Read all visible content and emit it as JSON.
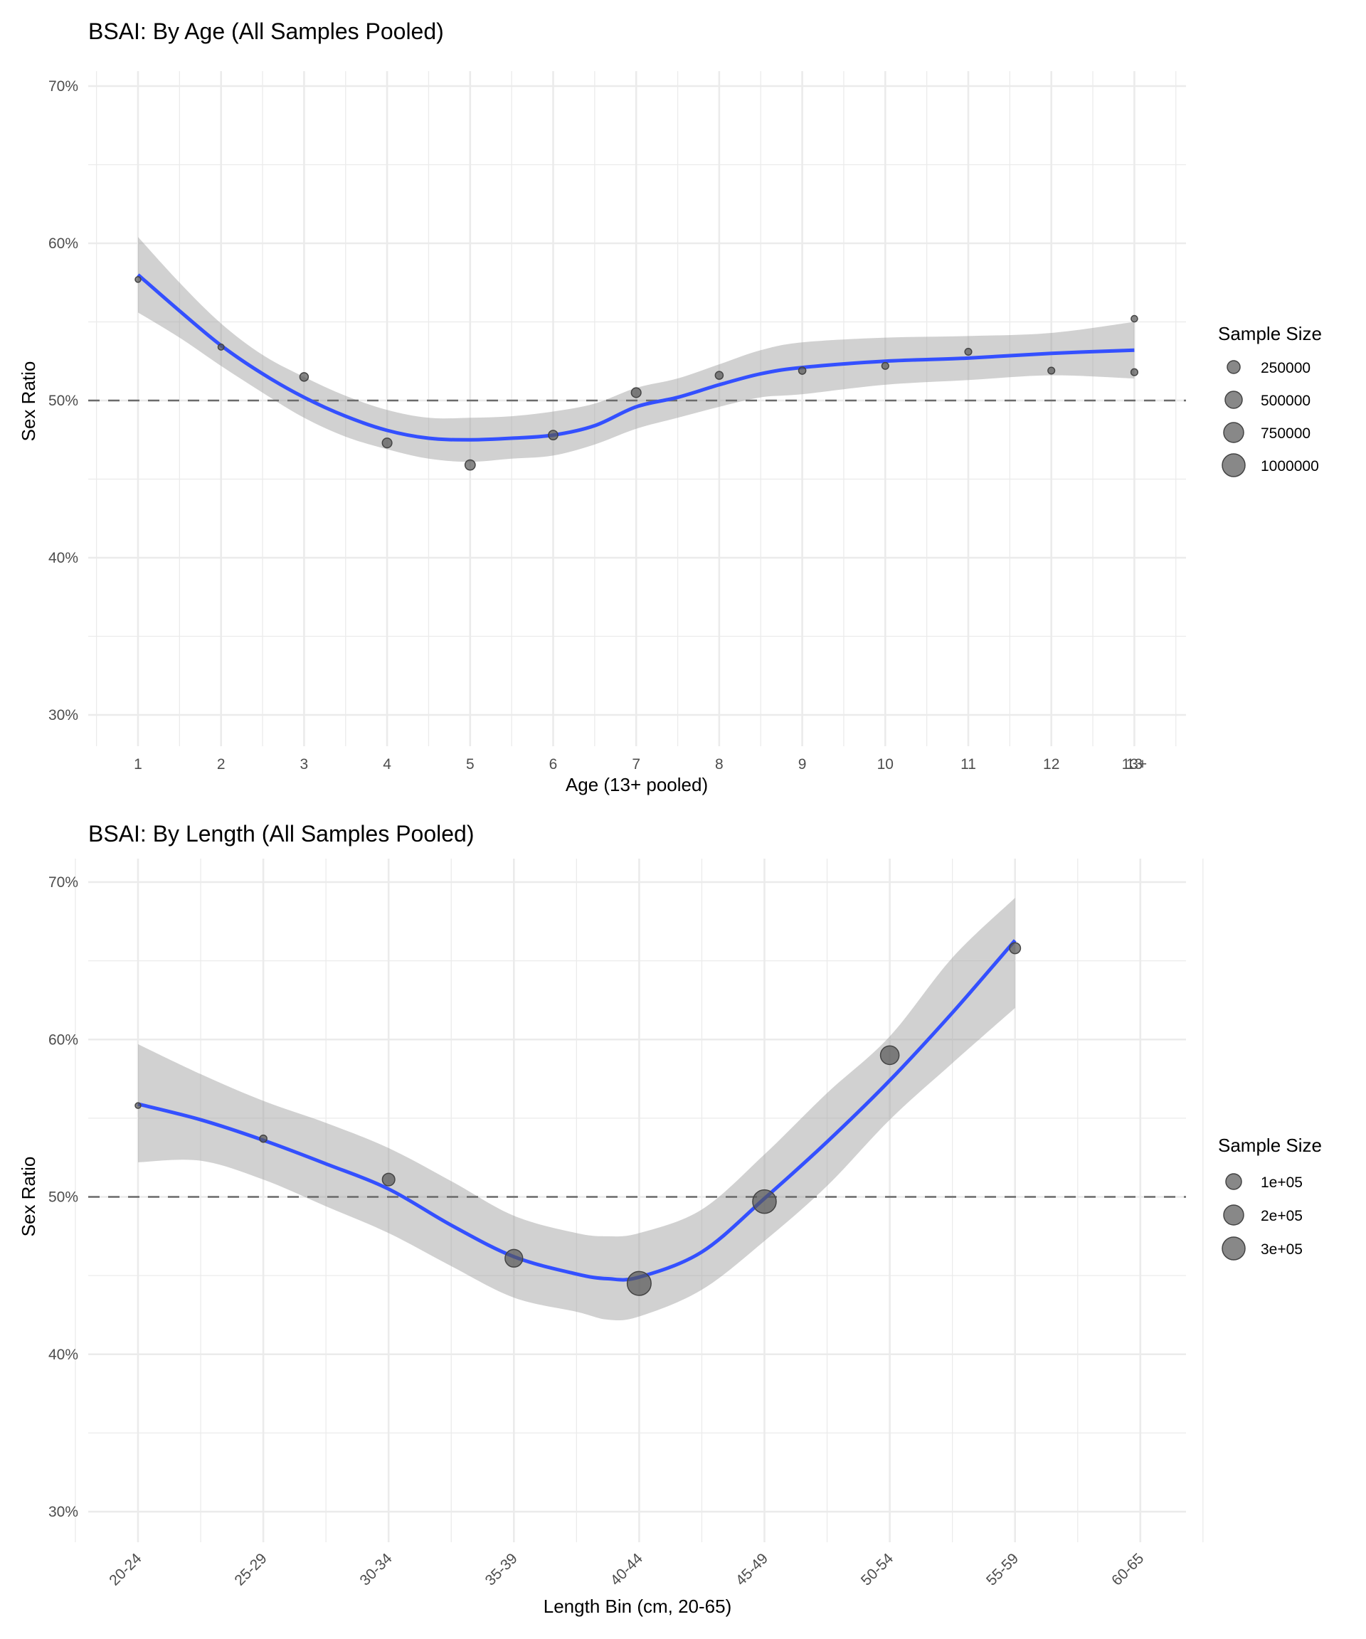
{
  "chart_data": [
    {
      "type": "scatter",
      "title": "BSAI: By Age (All Samples Pooled)",
      "xlabel": "Age (13+ pooled)",
      "ylabel": "Sex Ratio",
      "ylim": [
        0.28,
        0.72
      ],
      "yticks": [
        0.3,
        0.4,
        0.5,
        0.6,
        0.7
      ],
      "ytick_labels": [
        "30%",
        "40%",
        "50%",
        "60%",
        "70%"
      ],
      "grid": true,
      "reference_line": {
        "y": 0.5,
        "style": "dashed"
      },
      "x_categories": [
        "1",
        "2",
        "3",
        "4",
        "5",
        "6",
        "7",
        "8",
        "9",
        "10",
        "11",
        "12",
        "13",
        "13+"
      ],
      "x_positions": [
        1,
        2,
        3,
        4,
        5,
        6,
        7,
        8,
        9,
        10,
        11,
        12,
        13,
        13
      ],
      "points": [
        {
          "x": 1,
          "y": 0.577,
          "size": 60000
        },
        {
          "x": 2,
          "y": 0.534,
          "size": 70000
        },
        {
          "x": 3,
          "y": 0.515,
          "size": 140000
        },
        {
          "x": 4,
          "y": 0.473,
          "size": 180000
        },
        {
          "x": 5,
          "y": 0.459,
          "size": 200000
        },
        {
          "x": 6,
          "y": 0.478,
          "size": 170000
        },
        {
          "x": 7,
          "y": 0.505,
          "size": 180000
        },
        {
          "x": 8,
          "y": 0.516,
          "size": 120000
        },
        {
          "x": 9,
          "y": 0.519,
          "size": 100000
        },
        {
          "x": 10,
          "y": 0.522,
          "size": 90000
        },
        {
          "x": 11,
          "y": 0.531,
          "size": 90000
        },
        {
          "x": 12,
          "y": 0.519,
          "size": 90000
        },
        {
          "x": 13,
          "y": 0.552,
          "size": 80000
        },
        {
          "x": 13,
          "y": 0.518,
          "size": 90000
        }
      ],
      "smooth": {
        "color": "#3450ff",
        "x": [
          1,
          1.5,
          2,
          2.5,
          3,
          3.5,
          4,
          4.5,
          5,
          5.5,
          6,
          6.5,
          7,
          7.5,
          8,
          8.5,
          9,
          10,
          11,
          12,
          13
        ],
        "y": [
          0.58,
          0.557,
          0.535,
          0.517,
          0.502,
          0.49,
          0.481,
          0.476,
          0.475,
          0.476,
          0.478,
          0.484,
          0.496,
          0.502,
          0.51,
          0.517,
          0.521,
          0.525,
          0.527,
          0.53,
          0.532
        ],
        "lower": [
          0.556,
          0.54,
          0.522,
          0.505,
          0.489,
          0.477,
          0.469,
          0.463,
          0.461,
          0.463,
          0.465,
          0.472,
          0.482,
          0.489,
          0.496,
          0.502,
          0.504,
          0.51,
          0.513,
          0.516,
          0.514
        ],
        "upper": [
          0.604,
          0.575,
          0.549,
          0.529,
          0.515,
          0.503,
          0.494,
          0.489,
          0.489,
          0.49,
          0.493,
          0.498,
          0.508,
          0.514,
          0.523,
          0.532,
          0.537,
          0.54,
          0.541,
          0.543,
          0.55
        ]
      },
      "legend": {
        "title": "Sample Size",
        "position": "right",
        "entries": [
          {
            "label": "250000",
            "value": 250000
          },
          {
            "label": "500000",
            "value": 500000
          },
          {
            "label": "750000",
            "value": 750000
          },
          {
            "label": "1000000",
            "value": 1000000
          }
        ]
      }
    },
    {
      "type": "scatter",
      "title": "BSAI: By Length (All Samples Pooled)",
      "xlabel": "Length Bin (cm, 20-65)",
      "ylabel": "Sex Ratio",
      "ylim": [
        0.28,
        0.72
      ],
      "yticks": [
        0.3,
        0.4,
        0.5,
        0.6,
        0.7
      ],
      "ytick_labels": [
        "30%",
        "40%",
        "50%",
        "60%",
        "70%"
      ],
      "grid": true,
      "reference_line": {
        "y": 0.5,
        "style": "dashed"
      },
      "x_categories": [
        "20-24",
        "25-29",
        "30-34",
        "35-39",
        "40-44",
        "45-49",
        "50-54",
        "55-59",
        "60-65"
      ],
      "x_label_rotation_deg": 45,
      "points": [
        {
          "x": "20-24",
          "y": 0.558,
          "size": 5000
        },
        {
          "x": "25-29",
          "y": 0.537,
          "size": 30000
        },
        {
          "x": "30-34",
          "y": 0.511,
          "size": 90000
        },
        {
          "x": "35-39",
          "y": 0.461,
          "size": 180000
        },
        {
          "x": "40-44",
          "y": 0.445,
          "size": 330000
        },
        {
          "x": "45-49",
          "y": 0.497,
          "size": 320000
        },
        {
          "x": "50-54",
          "y": 0.59,
          "size": 200000
        },
        {
          "x": "55-59",
          "y": 0.658,
          "size": 70000
        }
      ],
      "smooth": {
        "color": "#3450ff",
        "x": [
          1,
          1.5,
          2,
          2.5,
          3,
          3.5,
          4,
          4.5,
          4.75,
          5,
          5.5,
          6,
          6.5,
          7,
          7.5,
          8
        ],
        "y": [
          0.559,
          0.549,
          0.536,
          0.521,
          0.505,
          0.482,
          0.462,
          0.451,
          0.448,
          0.449,
          0.465,
          0.499,
          0.535,
          0.574,
          0.617,
          0.663
        ],
        "lower": [
          0.522,
          0.523,
          0.511,
          0.494,
          0.477,
          0.456,
          0.436,
          0.427,
          0.422,
          0.424,
          0.441,
          0.472,
          0.507,
          0.549,
          0.585,
          0.62
        ],
        "upper": [
          0.597,
          0.578,
          0.561,
          0.547,
          0.531,
          0.51,
          0.488,
          0.477,
          0.475,
          0.477,
          0.492,
          0.527,
          0.566,
          0.602,
          0.652,
          0.69
        ]
      },
      "legend": {
        "title": "Sample Size",
        "position": "right",
        "entries": [
          {
            "label": "1e+05",
            "value": 100000
          },
          {
            "label": "2e+05",
            "value": 200000
          },
          {
            "label": "3e+05",
            "value": 300000
          }
        ]
      }
    }
  ]
}
